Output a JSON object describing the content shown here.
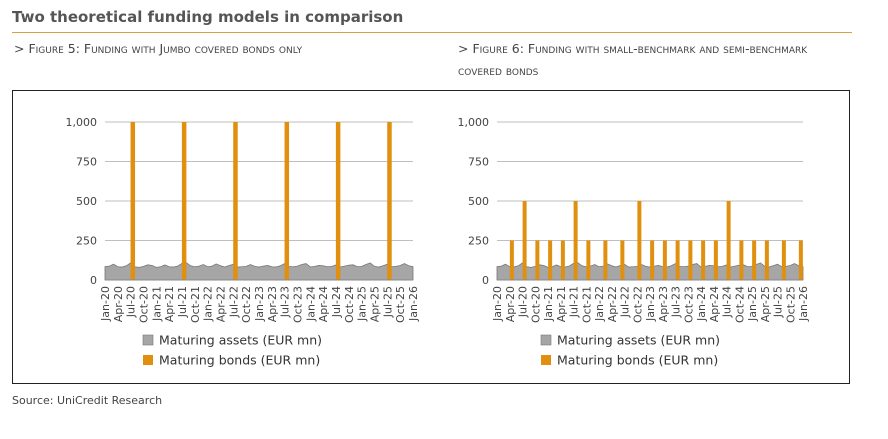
{
  "page": {
    "title": "Two theoretical funding models in comparison",
    "source": "Source: UniCredit Research"
  },
  "figures": {
    "fig5_title": "> Figure 5: Funding with Jumbo covered bonds only",
    "fig6_title": "> Figure 6: Funding with small-benchmark and semi-benchmark covered bonds"
  },
  "colors": {
    "assets": "#a6a6a6",
    "bonds": "#e0900e",
    "rule": "#d8a23a"
  },
  "chart_data": [
    {
      "type": "bar",
      "title": "",
      "xlabel": "",
      "ylabel": "",
      "ylim": [
        0,
        1000
      ],
      "yticks": [
        0,
        250,
        500,
        750,
        1000
      ],
      "ytick_labels": [
        "0",
        "250",
        "500",
        "750",
        "1,000"
      ],
      "grid": true,
      "legend_position": "bottom",
      "xtick_labels": [
        "Jan-20",
        "Apr-20",
        "Jul-20",
        "Oct-20",
        "Jan-21",
        "Apr-21",
        "Jul-21",
        "Oct-21",
        "Jan-22",
        "Apr-22",
        "Jul-22",
        "Oct-22",
        "Jan-23",
        "Apr-23",
        "Jul-23",
        "Oct-23",
        "Jan-24",
        "Apr-24",
        "Jul-24",
        "Oct-24",
        "Jan-25",
        "Apr-25",
        "Jul-25",
        "Oct-25",
        "Jan-26"
      ],
      "series": [
        {
          "name": "Maturing assets (EUR mn)",
          "type": "area",
          "values": [
            85,
            88,
            100,
            84,
            82,
            90,
            108,
            84,
            80,
            86,
            96,
            92,
            80,
            84,
            95,
            84,
            82,
            88,
            105,
            110,
            90,
            84,
            88,
            98,
            84,
            88,
            102,
            90,
            82,
            92,
            99,
            82,
            84,
            86,
            98,
            86,
            82,
            88,
            92,
            84,
            82,
            90,
            104,
            86,
            84,
            88,
            98,
            104,
            82,
            86,
            92,
            90,
            84,
            86,
            95,
            82,
            88,
            94,
            96,
            84,
            86,
            98,
            108,
            86,
            82,
            90,
            100,
            84,
            86,
            92,
            104,
            90,
            84
          ]
        },
        {
          "name": "Maturing bonds (EUR mn)",
          "type": "bar",
          "points": [
            {
              "month": "Jul-20",
              "value": 1000
            },
            {
              "month": "Jul-21",
              "value": 1000
            },
            {
              "month": "Jul-22",
              "value": 1000
            },
            {
              "month": "Jul-23",
              "value": 1000
            },
            {
              "month": "Jul-24",
              "value": 1000
            },
            {
              "month": "Jul-25",
              "value": 1000
            }
          ]
        }
      ]
    },
    {
      "type": "bar",
      "title": "",
      "xlabel": "",
      "ylabel": "",
      "ylim": [
        0,
        1000
      ],
      "yticks": [
        0,
        250,
        500,
        750,
        1000
      ],
      "ytick_labels": [
        "0",
        "250",
        "500",
        "750",
        "1,000"
      ],
      "grid": true,
      "legend_position": "bottom",
      "xtick_labels": [
        "Jan-20",
        "Apr-20",
        "Jul-20",
        "Oct-20",
        "Jan-21",
        "Apr-21",
        "Jul-21",
        "Oct-21",
        "Jan-22",
        "Apr-22",
        "Jul-22",
        "Oct-22",
        "Jan-23",
        "Apr-23",
        "Jul-23",
        "Oct-23",
        "Jan-24",
        "Apr-24",
        "Jul-24",
        "Oct-24",
        "Jan-25",
        "Apr-25",
        "Jul-25",
        "Oct-25",
        "Jan-26"
      ],
      "series": [
        {
          "name": "Maturing assets (EUR mn)",
          "type": "area",
          "values": [
            85,
            88,
            100,
            84,
            82,
            90,
            108,
            84,
            80,
            86,
            96,
            92,
            80,
            84,
            95,
            84,
            82,
            88,
            105,
            110,
            90,
            84,
            88,
            98,
            84,
            88,
            102,
            90,
            82,
            92,
            99,
            82,
            84,
            86,
            98,
            86,
            82,
            88,
            92,
            84,
            82,
            90,
            104,
            86,
            84,
            88,
            98,
            104,
            82,
            86,
            92,
            90,
            84,
            86,
            95,
            82,
            88,
            94,
            96,
            84,
            86,
            98,
            108,
            86,
            82,
            90,
            100,
            84,
            86,
            92,
            104,
            90,
            84
          ]
        },
        {
          "name": "Maturing bonds (EUR mn)",
          "type": "bar",
          "points": [
            {
              "month": "Apr-20",
              "value": 250
            },
            {
              "month": "Jul-20",
              "value": 500
            },
            {
              "month": "Oct-20",
              "value": 250
            },
            {
              "month": "Jan-21",
              "value": 250
            },
            {
              "month": "Apr-21",
              "value": 250
            },
            {
              "month": "Jul-21",
              "value": 500
            },
            {
              "month": "Oct-21",
              "value": 250
            },
            {
              "month": "Feb-22",
              "value": 250
            },
            {
              "month": "Jun-22",
              "value": 250
            },
            {
              "month": "Oct-22",
              "value": 500
            },
            {
              "month": "Jan-23",
              "value": 250
            },
            {
              "month": "Apr-23",
              "value": 250
            },
            {
              "month": "Jul-23",
              "value": 250
            },
            {
              "month": "Oct-23",
              "value": 250
            },
            {
              "month": "Jan-24",
              "value": 250
            },
            {
              "month": "Apr-24",
              "value": 250
            },
            {
              "month": "Jul-24",
              "value": 500
            },
            {
              "month": "Oct-24",
              "value": 250
            },
            {
              "month": "Jan-25",
              "value": 250
            },
            {
              "month": "Apr-25",
              "value": 250
            },
            {
              "month": "Aug-25",
              "value": 250
            },
            {
              "month": "Dec-25",
              "value": 250
            }
          ]
        }
      ]
    }
  ]
}
